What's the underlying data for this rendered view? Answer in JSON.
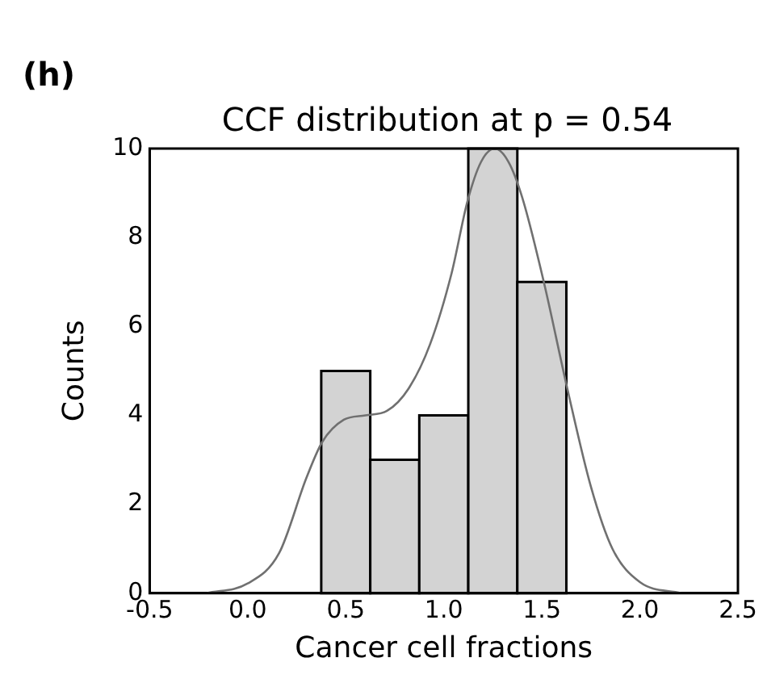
{
  "chart_data": {
    "type": "histogram",
    "title": "CCF distribution at p = 0.54",
    "xlabel": "Cancer cell fractions",
    "ylabel": "Counts",
    "annotations": [
      "(h)"
    ],
    "bins": [
      0.375,
      0.625,
      0.875,
      1.125,
      1.375,
      1.625
    ],
    "values": [
      5,
      3,
      4,
      10,
      7
    ],
    "color": "#d3d3d3",
    "series": [
      {
        "type": "line",
        "color": "#707070",
        "x": [
          -0.21,
          0,
          0.16,
          0.3,
          0.38,
          0.49,
          0.6,
          0.71,
          0.82,
          0.93,
          1.04,
          1.12,
          1.19,
          1.26,
          1.33,
          1.4,
          1.51,
          1.63,
          1.75,
          1.86,
          2.0,
          2.21
        ],
        "values": [
          0,
          0.22,
          0.9,
          2.6,
          3.4,
          3.9,
          4.0,
          4.1,
          4.6,
          5.6,
          7.2,
          8.8,
          9.7,
          10.0,
          9.7,
          8.9,
          7.0,
          4.6,
          2.4,
          1.0,
          0.25,
          0
        ]
      }
    ],
    "xlim": [
      -0.5,
      2.5
    ],
    "xticks": [
      -0.5,
      {
        "value": 0,
        "label": "0.0"
      },
      0.5,
      {
        "value": 1,
        "label": "1.0"
      },
      1.5,
      {
        "value": 2,
        "label": "2.0"
      },
      2.5
    ],
    "ylim": [
      0,
      10
    ],
    "yticks": [
      0,
      2,
      4,
      6,
      8,
      10
    ],
    "grid": false,
    "legend": false
  }
}
